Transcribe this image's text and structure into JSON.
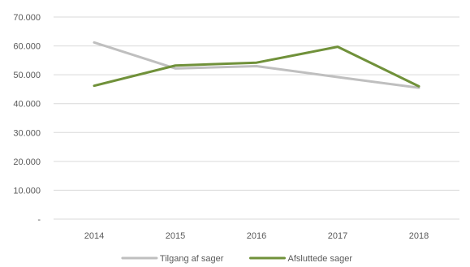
{
  "chart_data": {
    "type": "line",
    "categories": [
      "2014",
      "2015",
      "2016",
      "2017",
      "2018"
    ],
    "series": [
      {
        "name": "Tilgang af sager",
        "values": [
          61200,
          52200,
          53000,
          49200,
          45500
        ],
        "color": "#bfbfbf"
      },
      {
        "name": "Afsluttede sager",
        "values": [
          46200,
          53200,
          54200,
          59700,
          46000
        ],
        "color": "#70913a"
      }
    ],
    "ylim": [
      0,
      70000
    ],
    "yticks": [
      0,
      10000,
      20000,
      30000,
      40000,
      50000,
      60000,
      70000
    ],
    "ytick_labels": [
      "-",
      "10.000",
      "20.000",
      "30.000",
      "40.000",
      "50.000",
      "60.000",
      "70.000"
    ],
    "grid": true,
    "legend_position": "bottom",
    "title": "",
    "xlabel": "",
    "ylabel": ""
  }
}
